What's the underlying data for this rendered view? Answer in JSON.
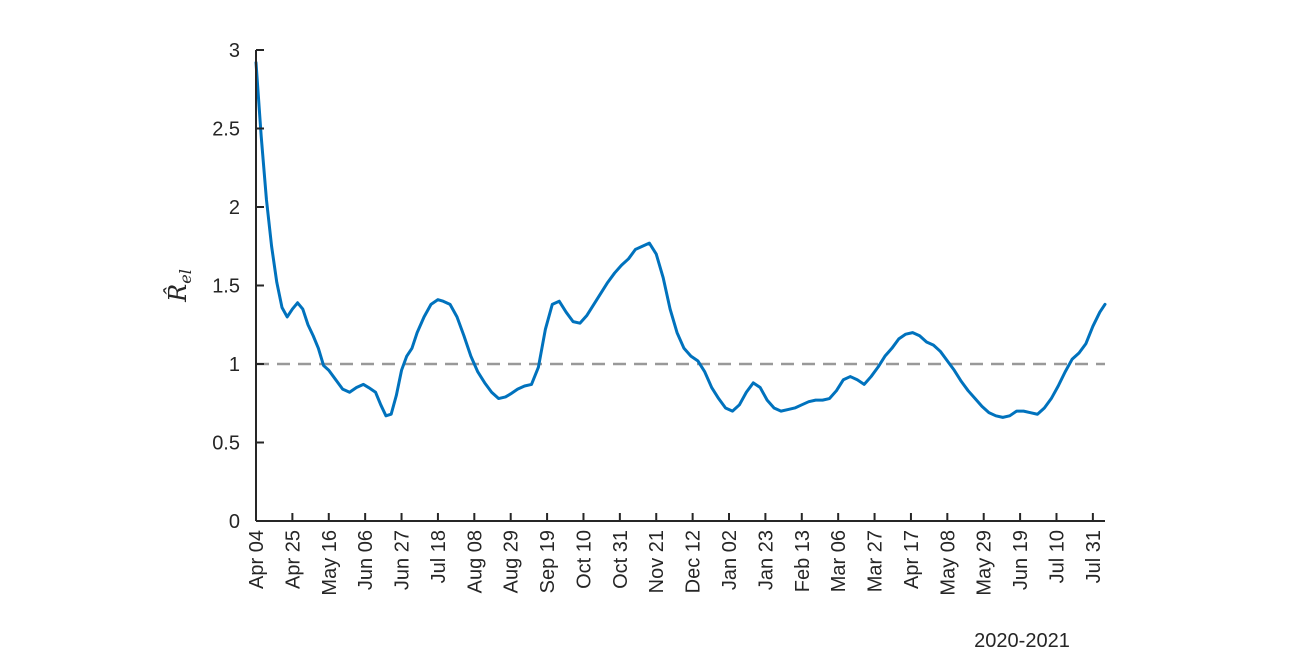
{
  "chart_data": {
    "type": "line",
    "ylabel": "R̂el",
    "xlabel": "2020-2021",
    "ylim": [
      0,
      3
    ],
    "yticks": [
      0,
      0.5,
      1,
      1.5,
      2,
      2.5,
      3
    ],
    "xlim": [
      "2020-04-04",
      "2021-08-07"
    ],
    "xticks": [
      "2020-04-04",
      "2020-04-25",
      "2020-05-16",
      "2020-06-06",
      "2020-06-27",
      "2020-07-18",
      "2020-08-08",
      "2020-08-29",
      "2020-09-19",
      "2020-10-10",
      "2020-10-31",
      "2020-11-21",
      "2020-12-12",
      "2021-01-02",
      "2021-01-23",
      "2021-02-13",
      "2021-03-06",
      "2021-03-27",
      "2021-04-17",
      "2021-05-08",
      "2021-05-29",
      "2021-06-19",
      "2021-07-10",
      "2021-07-31"
    ],
    "xticklabels": [
      "Apr 04",
      "Apr 25",
      "May 16",
      "Jun 06",
      "Jun 27",
      "Jul 18",
      "Aug 08",
      "Aug 29",
      "Sep 19",
      "Oct 10",
      "Oct 31",
      "Nov 21",
      "Dec 12",
      "Jan 02",
      "Jan 23",
      "Feb 13",
      "Mar 06",
      "Mar 27",
      "Apr 17",
      "May 08",
      "May 29",
      "Jun 19",
      "Jul 10",
      "Jul 31"
    ],
    "reference_line": {
      "y": 1,
      "style": "dashed",
      "color": "#999999"
    },
    "series": [
      {
        "color": "#0072BD",
        "x": [
          "2020-04-04",
          "2020-04-07",
          "2020-04-10",
          "2020-04-13",
          "2020-04-16",
          "2020-04-19",
          "2020-04-22",
          "2020-04-25",
          "2020-04-28",
          "2020-05-01",
          "2020-05-04",
          "2020-05-07",
          "2020-05-10",
          "2020-05-13",
          "2020-05-16",
          "2020-05-20",
          "2020-05-24",
          "2020-05-28",
          "2020-06-01",
          "2020-06-05",
          "2020-06-08",
          "2020-06-12",
          "2020-06-15",
          "2020-06-18",
          "2020-06-21",
          "2020-06-24",
          "2020-06-27",
          "2020-06-30",
          "2020-07-03",
          "2020-07-06",
          "2020-07-10",
          "2020-07-14",
          "2020-07-18",
          "2020-07-21",
          "2020-07-25",
          "2020-07-29",
          "2020-08-02",
          "2020-08-06",
          "2020-08-10",
          "2020-08-14",
          "2020-08-18",
          "2020-08-22",
          "2020-08-26",
          "2020-08-29",
          "2020-09-02",
          "2020-09-06",
          "2020-09-10",
          "2020-09-14",
          "2020-09-18",
          "2020-09-22",
          "2020-09-26",
          "2020-09-30",
          "2020-10-04",
          "2020-10-08",
          "2020-10-12",
          "2020-10-16",
          "2020-10-20",
          "2020-10-24",
          "2020-10-28",
          "2020-11-01",
          "2020-11-05",
          "2020-11-09",
          "2020-11-13",
          "2020-11-17",
          "2020-11-21",
          "2020-11-25",
          "2020-11-29",
          "2020-12-03",
          "2020-12-07",
          "2020-12-11",
          "2020-12-15",
          "2020-12-19",
          "2020-12-23",
          "2020-12-27",
          "2020-12-31",
          "2021-01-04",
          "2021-01-08",
          "2021-01-12",
          "2021-01-16",
          "2021-01-20",
          "2021-01-24",
          "2021-01-28",
          "2021-02-01",
          "2021-02-05",
          "2021-02-09",
          "2021-02-13",
          "2021-02-17",
          "2021-02-21",
          "2021-02-25",
          "2021-03-01",
          "2021-03-05",
          "2021-03-09",
          "2021-03-13",
          "2021-03-17",
          "2021-03-21",
          "2021-03-25",
          "2021-03-29",
          "2021-04-02",
          "2021-04-06",
          "2021-04-10",
          "2021-04-14",
          "2021-04-18",
          "2021-04-22",
          "2021-04-26",
          "2021-04-30",
          "2021-05-04",
          "2021-05-08",
          "2021-05-12",
          "2021-05-16",
          "2021-05-20",
          "2021-05-24",
          "2021-05-28",
          "2021-06-01",
          "2021-06-05",
          "2021-06-09",
          "2021-06-13",
          "2021-06-17",
          "2021-06-21",
          "2021-06-25",
          "2021-06-29",
          "2021-07-03",
          "2021-07-07",
          "2021-07-11",
          "2021-07-15",
          "2021-07-19",
          "2021-07-23",
          "2021-07-27",
          "2021-07-31",
          "2021-08-04",
          "2021-08-07"
        ],
        "y": [
          2.92,
          2.45,
          2.05,
          1.75,
          1.52,
          1.36,
          1.3,
          1.35,
          1.39,
          1.35,
          1.25,
          1.18,
          1.1,
          0.99,
          0.96,
          0.9,
          0.84,
          0.82,
          0.85,
          0.87,
          0.85,
          0.82,
          0.74,
          0.67,
          0.68,
          0.8,
          0.96,
          1.05,
          1.1,
          1.2,
          1.3,
          1.38,
          1.41,
          1.4,
          1.38,
          1.3,
          1.18,
          1.05,
          0.95,
          0.88,
          0.82,
          0.78,
          0.79,
          0.81,
          0.84,
          0.86,
          0.87,
          0.98,
          1.22,
          1.38,
          1.4,
          1.33,
          1.27,
          1.26,
          1.31,
          1.38,
          1.45,
          1.52,
          1.58,
          1.63,
          1.67,
          1.73,
          1.75,
          1.77,
          1.7,
          1.55,
          1.35,
          1.2,
          1.1,
          1.05,
          1.02,
          0.95,
          0.85,
          0.78,
          0.72,
          0.7,
          0.74,
          0.82,
          0.88,
          0.85,
          0.77,
          0.72,
          0.7,
          0.71,
          0.72,
          0.74,
          0.76,
          0.77,
          0.77,
          0.78,
          0.83,
          0.9,
          0.92,
          0.9,
          0.87,
          0.92,
          0.98,
          1.05,
          1.1,
          1.16,
          1.19,
          1.2,
          1.18,
          1.14,
          1.12,
          1.08,
          1.02,
          0.96,
          0.89,
          0.83,
          0.78,
          0.73,
          0.69,
          0.67,
          0.66,
          0.67,
          0.7,
          0.7,
          0.69,
          0.68,
          0.72,
          0.78,
          0.86,
          0.95,
          1.03,
          1.07,
          1.13,
          1.24,
          1.33,
          1.38
        ]
      }
    ]
  }
}
